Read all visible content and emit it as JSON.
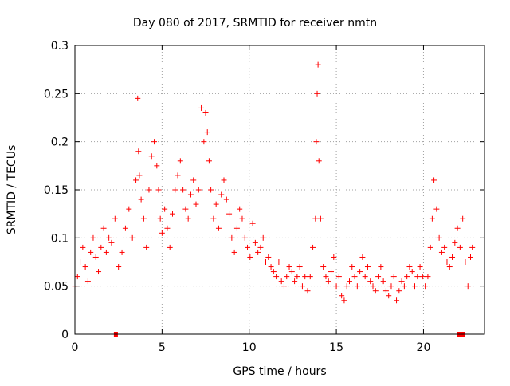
{
  "chart_data": {
    "type": "scatter",
    "title": "Day 080 of 2017, SRMTID for receiver nmtn",
    "xlabel": "GPS time / hours",
    "ylabel": "SRMTID / TECUs",
    "xlim": [
      0,
      23.5
    ],
    "ylim": [
      0,
      0.3
    ],
    "xticks": [
      0,
      5,
      10,
      15,
      20
    ],
    "xtick_labels": [
      "0",
      "5",
      "10",
      "15",
      "20"
    ],
    "yticks": [
      0,
      0.05,
      0.1,
      0.15,
      0.2,
      0.25,
      0.3
    ],
    "ytick_labels": [
      "0",
      "0.05",
      "0.1",
      "0.15",
      "0.2",
      "0.25",
      "0.3"
    ],
    "grid": true,
    "marker": "+",
    "series": [
      {
        "name": "SRMTID",
        "color": "#ff0000",
        "x": [
          0.0,
          0.15,
          0.3,
          0.45,
          0.6,
          0.75,
          0.9,
          1.05,
          1.2,
          1.35,
          1.5,
          1.65,
          1.8,
          1.95,
          2.1,
          2.3,
          2.5,
          2.7,
          2.9,
          3.1,
          3.3,
          3.5,
          3.6,
          3.65,
          3.7,
          3.8,
          3.95,
          4.1,
          4.25,
          4.4,
          4.55,
          4.7,
          4.8,
          4.9,
          5.0,
          5.15,
          5.3,
          5.45,
          5.6,
          5.75,
          5.9,
          6.05,
          6.2,
          6.35,
          6.5,
          6.65,
          6.8,
          6.95,
          7.1,
          7.25,
          7.4,
          7.5,
          7.6,
          7.7,
          7.8,
          7.95,
          8.1,
          8.25,
          8.4,
          8.55,
          8.7,
          8.85,
          9.0,
          9.15,
          9.3,
          9.45,
          9.6,
          9.75,
          9.9,
          10.05,
          10.2,
          10.35,
          10.5,
          10.65,
          10.8,
          10.95,
          11.1,
          11.25,
          11.4,
          11.55,
          11.7,
          11.85,
          12.0,
          12.15,
          12.3,
          12.45,
          12.6,
          12.75,
          12.9,
          13.05,
          13.2,
          13.35,
          13.5,
          13.65,
          13.8,
          13.85,
          13.9,
          13.95,
          14.0,
          14.1,
          14.25,
          14.4,
          14.55,
          14.7,
          14.85,
          15.0,
          15.15,
          15.3,
          15.45,
          15.6,
          15.75,
          15.9,
          16.05,
          16.2,
          16.35,
          16.5,
          16.65,
          16.8,
          16.95,
          17.1,
          17.25,
          17.4,
          17.55,
          17.7,
          17.85,
          18.0,
          18.15,
          18.3,
          18.45,
          18.6,
          18.75,
          18.9,
          19.05,
          19.2,
          19.35,
          19.5,
          19.65,
          19.8,
          19.95,
          20.1,
          20.25,
          20.4,
          20.5,
          20.6,
          20.75,
          20.9,
          21.05,
          21.2,
          21.35,
          21.5,
          21.65,
          21.8,
          21.95,
          22.1,
          22.25,
          22.4,
          22.55,
          22.7,
          22.8
        ],
        "y": [
          0.05,
          0.06,
          0.075,
          0.09,
          0.07,
          0.055,
          0.085,
          0.1,
          0.08,
          0.065,
          0.09,
          0.11,
          0.085,
          0.1,
          0.095,
          0.12,
          0.07,
          0.085,
          0.11,
          0.13,
          0.1,
          0.16,
          0.245,
          0.19,
          0.165,
          0.14,
          0.12,
          0.09,
          0.15,
          0.185,
          0.2,
          0.175,
          0.15,
          0.12,
          0.105,
          0.13,
          0.11,
          0.09,
          0.125,
          0.15,
          0.165,
          0.18,
          0.15,
          0.13,
          0.12,
          0.145,
          0.16,
          0.135,
          0.15,
          0.235,
          0.2,
          0.23,
          0.21,
          0.18,
          0.15,
          0.12,
          0.135,
          0.11,
          0.145,
          0.16,
          0.14,
          0.125,
          0.1,
          0.085,
          0.11,
          0.13,
          0.12,
          0.1,
          0.09,
          0.08,
          0.115,
          0.095,
          0.085,
          0.09,
          0.1,
          0.075,
          0.08,
          0.07,
          0.065,
          0.06,
          0.075,
          0.055,
          0.05,
          0.06,
          0.07,
          0.065,
          0.055,
          0.06,
          0.07,
          0.05,
          0.06,
          0.045,
          0.06,
          0.09,
          0.12,
          0.2,
          0.25,
          0.28,
          0.18,
          0.12,
          0.07,
          0.06,
          0.055,
          0.065,
          0.08,
          0.05,
          0.06,
          0.04,
          0.035,
          0.05,
          0.055,
          0.07,
          0.06,
          0.05,
          0.065,
          0.08,
          0.06,
          0.07,
          0.055,
          0.05,
          0.045,
          0.06,
          0.07,
          0.055,
          0.045,
          0.04,
          0.05,
          0.06,
          0.035,
          0.045,
          0.055,
          0.05,
          0.06,
          0.07,
          0.065,
          0.05,
          0.06,
          0.07,
          0.06,
          0.05,
          0.06,
          0.09,
          0.12,
          0.16,
          0.13,
          0.1,
          0.085,
          0.09,
          0.075,
          0.07,
          0.08,
          0.095,
          0.11,
          0.09,
          0.12,
          0.075,
          0.05,
          0.08,
          0.09
        ]
      }
    ],
    "baseline_marks": {
      "y": 0,
      "x": [
        2.35,
        22.05,
        22.25
      ]
    }
  }
}
